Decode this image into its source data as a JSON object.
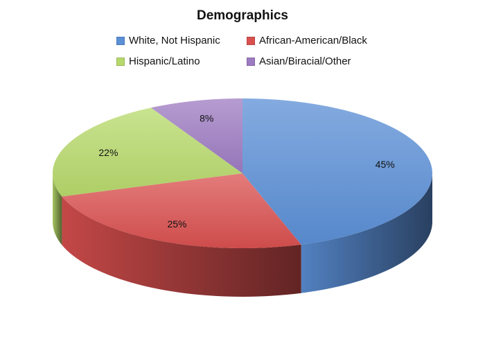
{
  "chart_data": {
    "type": "pie",
    "title": "Demographics",
    "categories": [
      "White, Not Hispanic",
      "African-American/Black",
      "Hispanic/Latino",
      "Asian/Biracial/Other"
    ],
    "values": [
      45,
      25,
      22,
      8
    ],
    "labels": [
      "45%",
      "25%",
      "22%",
      "8%"
    ],
    "colors": [
      "#5b8fd6",
      "#d9504f",
      "#b7d96b",
      "#9d7bc2"
    ],
    "legend_position": "top"
  }
}
